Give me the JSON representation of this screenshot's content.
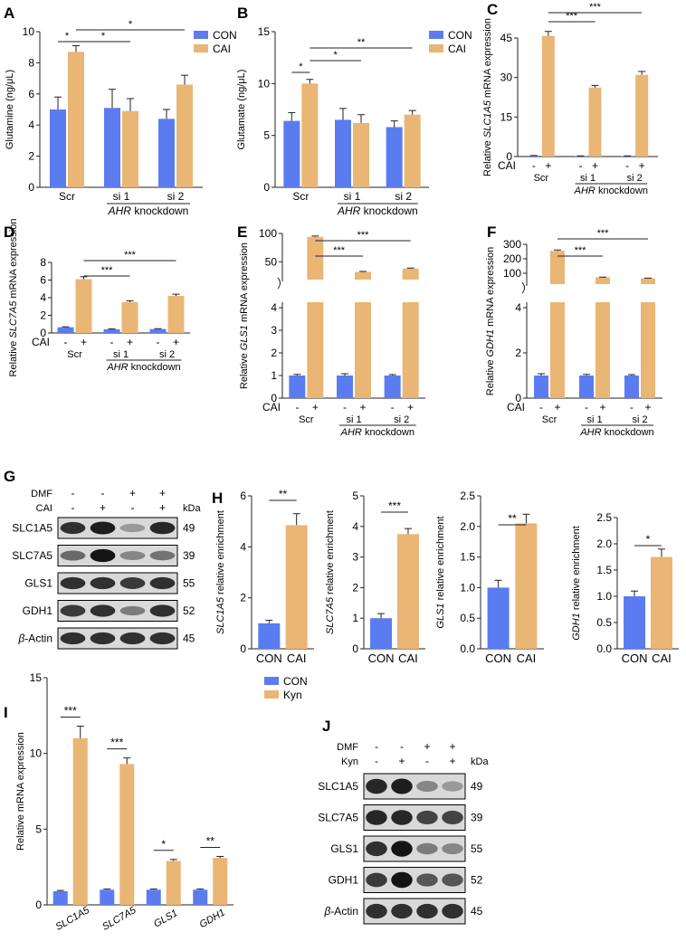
{
  "colors": {
    "con": "#5b7cf0",
    "cai": "#e9b675",
    "axis": "#222222"
  },
  "legend": {
    "con": "CON",
    "cai": "CAI",
    "kyn": "Kyn"
  },
  "chart_data": [
    {
      "id": "A",
      "letter": "A",
      "type": "bar",
      "ylabel": "Glutamine (ng/μL)",
      "ylim": [
        0,
        10
      ],
      "yticks": [
        0,
        2,
        4,
        6,
        8,
        10
      ],
      "groups": [
        "Scr",
        "si 1",
        "si 2"
      ],
      "group_label": "AHR knockdown",
      "series": [
        {
          "name": "CON",
          "values": [
            5.0,
            5.1,
            4.4
          ],
          "errors": [
            0.8,
            1.2,
            0.6
          ]
        },
        {
          "name": "CAI",
          "values": [
            8.7,
            4.9,
            6.6
          ],
          "errors": [
            0.4,
            0.8,
            0.6
          ]
        }
      ],
      "significance": [
        {
          "label": "*",
          "from": [
            0,
            0
          ],
          "to": [
            0,
            1
          ]
        },
        {
          "label": "*",
          "from": [
            0,
            1
          ],
          "to": [
            1,
            1
          ]
        },
        {
          "label": "*",
          "from": [
            0,
            1
          ],
          "to": [
            2,
            1
          ]
        }
      ]
    },
    {
      "id": "B",
      "letter": "B",
      "type": "bar",
      "ylabel": "Glutamate (ng/μL)",
      "ylim": [
        0,
        15
      ],
      "yticks": [
        0,
        5,
        10,
        15
      ],
      "groups": [
        "Scr",
        "si 1",
        "si 2"
      ],
      "group_label": "AHR knockdown",
      "series": [
        {
          "name": "CON",
          "values": [
            6.4,
            6.5,
            5.8
          ],
          "errors": [
            0.8,
            1.1,
            0.6
          ]
        },
        {
          "name": "CAI",
          "values": [
            10.0,
            6.2,
            7.0
          ],
          "errors": [
            0.4,
            0.8,
            0.4
          ]
        }
      ],
      "significance": [
        {
          "label": "*",
          "from": [
            0,
            0
          ],
          "to": [
            0,
            1
          ]
        },
        {
          "label": "*",
          "from": [
            0,
            1
          ],
          "to": [
            1,
            1
          ]
        },
        {
          "label": "**",
          "from": [
            0,
            1
          ],
          "to": [
            2,
            1
          ]
        }
      ]
    },
    {
      "id": "C",
      "letter": "C",
      "type": "bar",
      "ylabel": "Relative SLC1A5 mRNA expression",
      "ylim": [
        0,
        45
      ],
      "yticks": [
        0,
        15,
        30,
        45
      ],
      "groups": [
        "Scr",
        "si 1",
        "si 2"
      ],
      "group_label": "AHR knockdown",
      "cai_label": "CAI",
      "signs": [
        "-",
        "+"
      ],
      "series": [
        {
          "name": "CON",
          "values": [
            0.3,
            0.2,
            0.2
          ],
          "errors": [
            0.1,
            0.05,
            0.05
          ]
        },
        {
          "name": "CAI",
          "values": [
            45.8,
            26.2,
            31.0
          ],
          "errors": [
            1.7,
            0.8,
            1.3
          ]
        }
      ],
      "significance": [
        {
          "label": "***",
          "from": [
            0,
            1
          ],
          "to": [
            1,
            1
          ]
        },
        {
          "label": "***",
          "from": [
            0,
            1
          ],
          "to": [
            2,
            1
          ]
        }
      ]
    },
    {
      "id": "D",
      "letter": "D",
      "type": "bar",
      "ylabel": "Relative SLC7A5 mRNA expression",
      "ylim": [
        0,
        8
      ],
      "yticks": [
        0,
        2,
        4,
        6,
        8
      ],
      "groups": [
        "Scr",
        "si 1",
        "si 2"
      ],
      "group_label": "AHR knockdown",
      "cai_label": "CAI",
      "signs": [
        "-",
        "+"
      ],
      "series": [
        {
          "name": "CON",
          "values": [
            0.65,
            0.42,
            0.45
          ],
          "errors": [
            0.05,
            0.04,
            0.04
          ]
        },
        {
          "name": "CAI",
          "values": [
            6.1,
            3.5,
            4.2
          ],
          "errors": [
            0.28,
            0.15,
            0.2
          ]
        }
      ],
      "significance": [
        {
          "label": "***",
          "from": [
            0,
            1
          ],
          "to": [
            1,
            1
          ]
        },
        {
          "label": "***",
          "from": [
            0,
            1
          ],
          "to": [
            2,
            1
          ]
        }
      ]
    },
    {
      "id": "E",
      "letter": "E",
      "type": "bar",
      "ylabel": "Relative GLS1 mRNA expression",
      "axis_break": {
        "lower": [
          0,
          4
        ],
        "upper": [
          25,
          100
        ]
      },
      "yticks_lower": [
        0,
        1,
        2,
        3,
        4
      ],
      "yticks_upper": [
        50,
        100
      ],
      "groups": [
        "Scr",
        "si 1",
        "si 2"
      ],
      "group_label": "AHR knockdown",
      "cai_label": "CAI",
      "signs": [
        "-",
        "+"
      ],
      "series": [
        {
          "name": "CON",
          "values": [
            1.0,
            1.0,
            1.0
          ],
          "errors": [
            0.05,
            0.08,
            0.04
          ]
        },
        {
          "name": "CAI",
          "values": [
            94,
            32,
            38
          ],
          "errors": [
            1.5,
            1.0,
            1.0
          ]
        }
      ],
      "significance": [
        {
          "label": "***",
          "from": [
            0,
            1
          ],
          "to": [
            1,
            1
          ]
        },
        {
          "label": "***",
          "from": [
            0,
            1
          ],
          "to": [
            2,
            1
          ]
        }
      ]
    },
    {
      "id": "F",
      "letter": "F",
      "type": "bar",
      "ylabel": "Relative GDH1 mRNA expression",
      "axis_break": {
        "lower": [
          0,
          4
        ],
        "upper": [
          50,
          300
        ]
      },
      "yticks_lower": [
        0,
        2,
        4
      ],
      "yticks_upper": [
        100,
        200,
        300
      ],
      "groups": [
        "Scr",
        "si 1",
        "si 2"
      ],
      "group_label": "AHR knockdown",
      "cai_label": "CAI",
      "signs": [
        "-",
        "+"
      ],
      "series": [
        {
          "name": "CON",
          "values": [
            1.0,
            1.0,
            1.0
          ],
          "errors": [
            0.08,
            0.05,
            0.04
          ]
        },
        {
          "name": "CAI",
          "values": [
            255,
            72,
            65
          ],
          "errors": [
            6,
            1.5,
            1.5
          ]
        }
      ],
      "significance": [
        {
          "label": "***",
          "from": [
            0,
            1
          ],
          "to": [
            1,
            1
          ]
        },
        {
          "label": "***",
          "from": [
            0,
            1
          ],
          "to": [
            2,
            1
          ]
        }
      ]
    },
    {
      "id": "H1",
      "letter": "H",
      "type": "bar",
      "ylabel": "SLC1A5 relative enrichment",
      "ylim": [
        0,
        6
      ],
      "yticks": [
        0,
        2,
        4,
        6
      ],
      "categories": [
        "CON",
        "CAI"
      ],
      "values": [
        1.0,
        4.85
      ],
      "errors": [
        0.12,
        0.45
      ],
      "significance": "**"
    },
    {
      "id": "H2",
      "letter": "",
      "type": "bar",
      "ylabel": "SLC7A5 relative enrichment",
      "ylim": [
        0,
        5
      ],
      "yticks": [
        0,
        1,
        2,
        3,
        4,
        5
      ],
      "categories": [
        "CON",
        "CAI"
      ],
      "values": [
        1.0,
        3.75
      ],
      "errors": [
        0.15,
        0.18
      ],
      "significance": "***"
    },
    {
      "id": "H3",
      "letter": "",
      "type": "bar",
      "ylabel": "GLS1 relative enrichment",
      "ylim": [
        0,
        2.5
      ],
      "yticks": [
        0,
        0.5,
        1.0,
        1.5,
        2.0,
        2.5
      ],
      "categories": [
        "CON",
        "CAI"
      ],
      "values": [
        1.0,
        2.05
      ],
      "errors": [
        0.12,
        0.15
      ],
      "significance": "**"
    },
    {
      "id": "H4",
      "letter": "",
      "type": "bar",
      "ylabel": "GDH1 relative enrichment",
      "ylim": [
        0,
        2.5
      ],
      "yticks": [
        0,
        0.5,
        1.0,
        1.5,
        2.0,
        2.5
      ],
      "categories": [
        "CON",
        "CAI"
      ],
      "values": [
        1.0,
        1.75
      ],
      "errors": [
        0.1,
        0.15
      ],
      "significance": "*"
    },
    {
      "id": "I",
      "letter": "I",
      "type": "bar",
      "ylabel": "Relative mRNA expression",
      "ylim": [
        0,
        15
      ],
      "yticks": [
        0,
        5,
        10,
        15
      ],
      "categories": [
        "SLC1A5",
        "SLC7A5",
        "GLS1",
        "GDH1"
      ],
      "series": [
        {
          "name": "CON",
          "values": [
            0.9,
            1.0,
            1.0,
            1.0
          ],
          "errors": [
            0.05,
            0.05,
            0.05,
            0.05
          ]
        },
        {
          "name": "Kyn",
          "values": [
            11.0,
            9.3,
            2.9,
            3.1
          ],
          "errors": [
            0.8,
            0.4,
            0.1,
            0.1
          ]
        }
      ],
      "significance": [
        "***",
        "***",
        "*",
        "**"
      ]
    }
  ],
  "blots": {
    "G": {
      "letter": "G",
      "row1_label": "DMF",
      "row2_label": "CAI",
      "row1_signs": [
        "-",
        "-",
        "+",
        "+"
      ],
      "row2_signs": [
        "-",
        "+",
        "-",
        "+"
      ],
      "unit": "kDa",
      "bands": [
        {
          "name": "SLC1A5",
          "kda": "49",
          "intensity": [
            0.8,
            0.9,
            0.25,
            0.85
          ]
        },
        {
          "name": "SLC7A5",
          "kda": "39",
          "intensity": [
            0.5,
            0.95,
            0.35,
            0.45
          ]
        },
        {
          "name": "GLS1",
          "kda": "55",
          "intensity": [
            0.8,
            0.8,
            0.75,
            0.8
          ]
        },
        {
          "name": "GDH1",
          "kda": "52",
          "intensity": [
            0.75,
            0.8,
            0.4,
            0.8
          ]
        },
        {
          "name": "β-Actin",
          "kda": "45",
          "intensity": [
            0.8,
            0.8,
            0.8,
            0.8
          ]
        }
      ]
    },
    "J": {
      "letter": "J",
      "row1_label": "DMF",
      "row2_label": "Kyn",
      "row1_signs": [
        "-",
        "-",
        "+",
        "+"
      ],
      "row2_signs": [
        "-",
        "+",
        "-",
        "+"
      ],
      "unit": "kDa",
      "bands": [
        {
          "name": "SLC1A5",
          "kda": "49",
          "intensity": [
            0.85,
            0.9,
            0.35,
            0.25
          ]
        },
        {
          "name": "SLC7A5",
          "kda": "39",
          "intensity": [
            0.85,
            0.85,
            0.7,
            0.7
          ]
        },
        {
          "name": "GLS1",
          "kda": "55",
          "intensity": [
            0.8,
            0.95,
            0.4,
            0.35
          ]
        },
        {
          "name": "GDH1",
          "kda": "52",
          "intensity": [
            0.75,
            0.95,
            0.6,
            0.6
          ]
        },
        {
          "name": "β-Actin",
          "kda": "45",
          "intensity": [
            0.8,
            0.8,
            0.8,
            0.8
          ]
        }
      ]
    }
  }
}
